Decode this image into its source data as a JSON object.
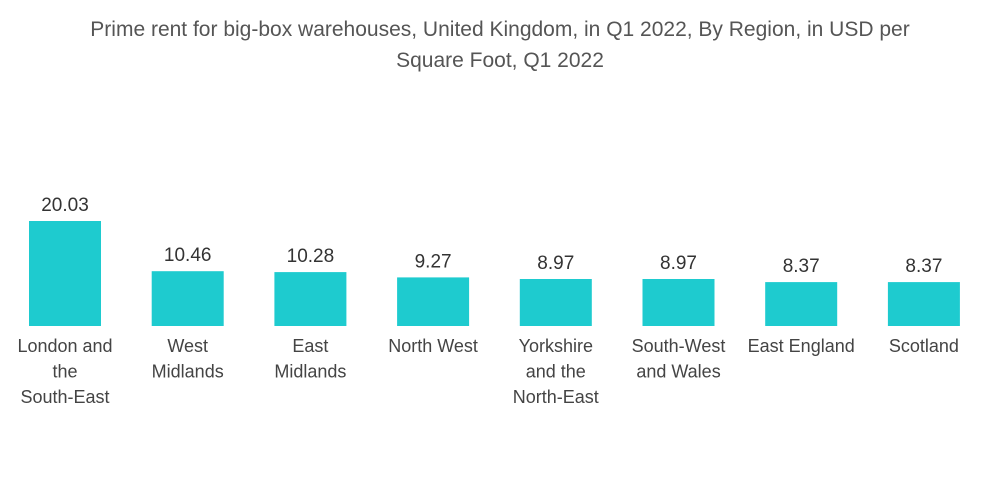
{
  "chart_data": {
    "type": "bar",
    "title_lines": [
      "Prime rent for big-box warehouses, United Kingdom, in Q1 2022, By Region, in USD per",
      "Square Foot, Q1 2022"
    ],
    "categories": [
      "London and the South-East",
      "West Midlands",
      "East Midlands",
      "North West",
      "Yorkshire and the North-East",
      "South-West and Wales",
      "East England",
      "Scotland"
    ],
    "category_lines": [
      [
        "London and",
        "the",
        "South-East"
      ],
      [
        "West",
        "Midlands"
      ],
      [
        "East",
        "Midlands"
      ],
      [
        "North West"
      ],
      [
        "Yorkshire",
        "and the",
        "North-East"
      ],
      [
        "South-West",
        "and Wales"
      ],
      [
        "East England"
      ],
      [
        "Scotland"
      ]
    ],
    "values": [
      20.03,
      10.46,
      10.28,
      9.27,
      8.97,
      8.97,
      8.37,
      8.37
    ],
    "value_labels": [
      "20.03",
      "10.46",
      "10.28",
      "9.27",
      "8.97",
      "8.97",
      "8.37",
      "8.37"
    ],
    "xlabel": "",
    "ylabel": "",
    "ylim": [
      0,
      20.03
    ],
    "grid": false,
    "legend": "none",
    "bar_color": "#1ECBCF"
  }
}
